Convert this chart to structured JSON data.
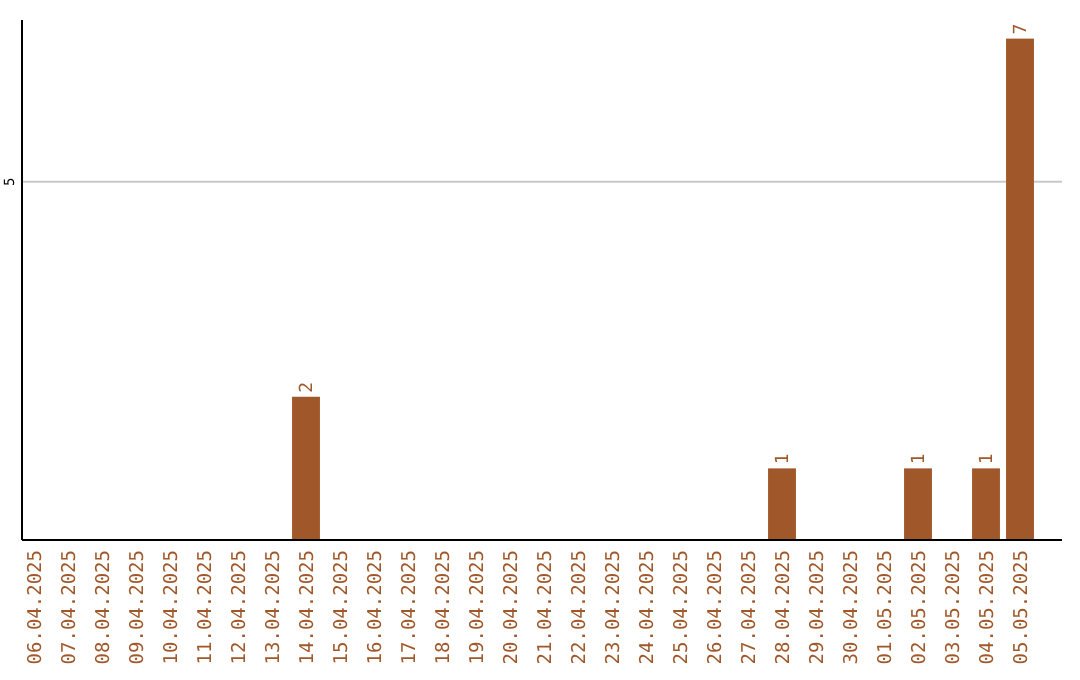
{
  "chart_data": {
    "type": "bar",
    "categories": [
      "06.04.2025",
      "07.04.2025",
      "08.04.2025",
      "09.04.2025",
      "10.04.2025",
      "11.04.2025",
      "12.04.2025",
      "13.04.2025",
      "14.04.2025",
      "15.04.2025",
      "16.04.2025",
      "17.04.2025",
      "18.04.2025",
      "19.04.2025",
      "20.04.2025",
      "21.04.2025",
      "22.04.2025",
      "23.04.2025",
      "24.04.2025",
      "25.04.2025",
      "26.04.2025",
      "27.04.2025",
      "28.04.2025",
      "29.04.2025",
      "30.04.2025",
      "01.05.2025",
      "02.05.2025",
      "03.05.2025",
      "04.05.2025",
      "05.05.2025"
    ],
    "values": [
      0,
      0,
      0,
      0,
      0,
      0,
      0,
      0,
      2,
      0,
      0,
      0,
      0,
      0,
      0,
      0,
      0,
      0,
      0,
      0,
      0,
      0,
      1,
      0,
      0,
      0,
      1,
      0,
      1,
      7
    ],
    "value_labels": [
      null,
      null,
      null,
      null,
      null,
      null,
      null,
      null,
      "2",
      null,
      null,
      null,
      null,
      null,
      null,
      null,
      null,
      null,
      null,
      null,
      null,
      null,
      "1",
      null,
      null,
      null,
      "1",
      null,
      "1",
      "7"
    ],
    "color": "#a0582a",
    "ylim": [
      0,
      7.26
    ],
    "yticks": [
      5
    ],
    "grid": "y"
  }
}
